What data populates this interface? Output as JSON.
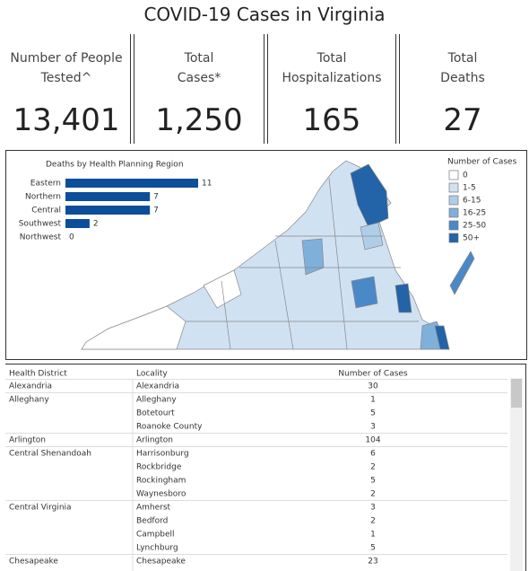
{
  "header": {
    "title": "COVID-19 Cases in Virginia"
  },
  "kpis": [
    {
      "label": "Number of People Tested^",
      "value": "13,401"
    },
    {
      "label": "Total Cases*",
      "value": "1,250"
    },
    {
      "label": "Total Hospitalizations",
      "value": "165"
    },
    {
      "label": "Total Deaths",
      "value": "27"
    }
  ],
  "chart_data": {
    "type": "bar",
    "orientation": "horizontal",
    "title": "Deaths by Health Planning Region",
    "categories": [
      "Eastern",
      "Northern",
      "Central",
      "Southwest",
      "Northwest"
    ],
    "values": [
      11,
      7,
      7,
      2,
      0
    ],
    "color": "#0c4e9a"
  },
  "legend": {
    "title": "Number of Cases",
    "items": [
      {
        "label": "0",
        "color": "#ffffff"
      },
      {
        "label": "1-5",
        "color": "#d0e1f2"
      },
      {
        "label": "6-15",
        "color": "#b0cde8"
      },
      {
        "label": "16-25",
        "color": "#7fb0da"
      },
      {
        "label": "25-50",
        "color": "#4a89c8"
      },
      {
        "label": "50+",
        "color": "#2363a8"
      }
    ]
  },
  "table": {
    "columns": [
      "Health District",
      "Locality",
      "Number of Cases"
    ],
    "groups": [
      {
        "district": "Alexandria",
        "rows": [
          [
            "Alexandria",
            "30"
          ]
        ]
      },
      {
        "district": "Alleghany",
        "rows": [
          [
            "Alleghany",
            "1"
          ],
          [
            "Botetourt",
            "5"
          ],
          [
            "Roanoke County",
            "3"
          ]
        ]
      },
      {
        "district": "Arlington",
        "rows": [
          [
            "Arlington",
            "104"
          ]
        ]
      },
      {
        "district": "Central Shenandoah",
        "rows": [
          [
            "Harrisonburg",
            "6"
          ],
          [
            "Rockbridge",
            "2"
          ],
          [
            "Rockingham",
            "5"
          ],
          [
            "Waynesboro",
            "2"
          ]
        ]
      },
      {
        "district": "Central Virginia",
        "rows": [
          [
            "Amherst",
            "3"
          ],
          [
            "Bedford",
            "2"
          ],
          [
            "Campbell",
            "1"
          ],
          [
            "Lynchburg",
            "5"
          ]
        ]
      },
      {
        "district": "Chesapeake",
        "rows": [
          [
            "Chesapeake",
            "23"
          ]
        ]
      }
    ]
  }
}
